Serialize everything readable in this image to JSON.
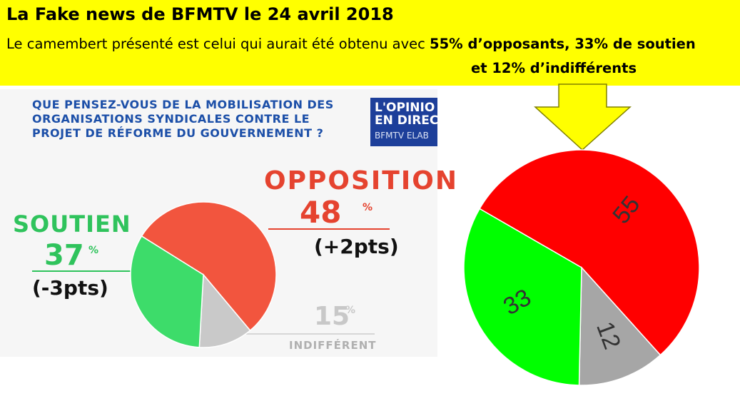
{
  "banner": {
    "title": "La Fake news de BFMTV le 24 avril 2018",
    "line1_plain": "Le camembert présenté est celui qui aurait été obtenu avec ",
    "line1_bold": "55% d’opposants, 33% de soutien",
    "line2_bold": "et 12% d’indifférents",
    "bg_color": "#ffff00"
  },
  "tv_graphic": {
    "question": "QUE PENSEZ-VOUS DE LA MOBILISATION DES\nORGANISATIONS SYNDICALES CONTRE LE\nPROJET DE RÉFORME DU GOUVERNEMENT ?",
    "logo_line1": "L'OPINIO",
    "logo_line2": "EN DIREC",
    "logo_line3": "BFMTV ELAB",
    "opposition": {
      "label": "OPPOSITION",
      "value": "48",
      "pct": "%",
      "delta": "(+2pts)"
    },
    "soutien": {
      "label": "SOUTIEN",
      "value": "37",
      "pct": "%",
      "delta": "(-3pts)"
    },
    "indifferent": {
      "label": "INDIFFÉRENT",
      "value": "15",
      "pct": "%"
    }
  },
  "chart_data": [
    {
      "type": "pie",
      "slices": [
        {
          "label": "OPPOSITION",
          "value": 55,
          "color": "#f2553e"
        },
        {
          "label": "INDIFFÉRENT",
          "value": 12,
          "color": "#c9c9c9"
        },
        {
          "label": "SOUTIEN",
          "value": 33,
          "color": "#3ddc6a"
        }
      ],
      "note": ""
    },
    {
      "type": "pie",
      "slices": [
        {
          "label": "55",
          "value": 55,
          "color": "#ff0000"
        },
        {
          "label": "12",
          "value": 12,
          "color": "#a6a6a6"
        },
        {
          "label": "33",
          "value": 33,
          "color": "#00ff00"
        }
      ]
    }
  ]
}
